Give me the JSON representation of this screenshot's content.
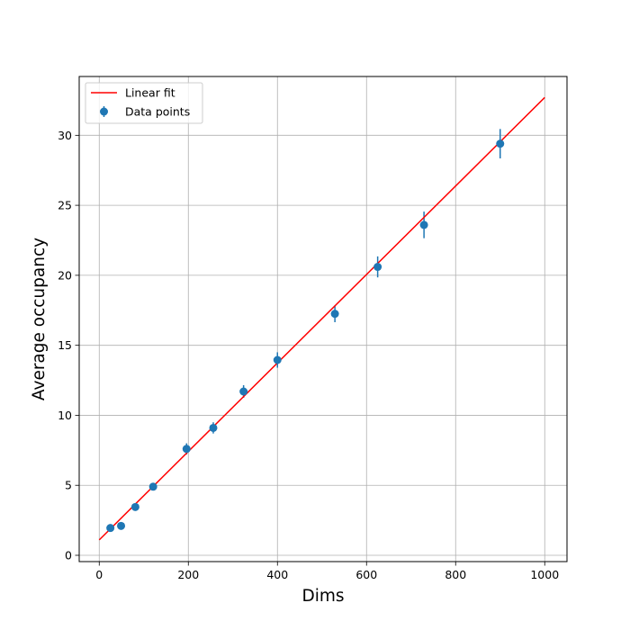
{
  "chart_data": {
    "type": "scatter",
    "title": "",
    "xlabel": "Dims",
    "ylabel": "Average occupancy",
    "xlim": [
      -45,
      1050
    ],
    "ylim": [
      -0.45,
      34.2
    ],
    "xticks": [
      0,
      200,
      400,
      600,
      800,
      1000
    ],
    "yticks": [
      0,
      5,
      10,
      15,
      20,
      25,
      30
    ],
    "grid": true,
    "legend": {
      "placement": "top-left",
      "entries": [
        "Linear fit",
        "Data points"
      ]
    },
    "series": [
      {
        "name": "Data points",
        "kind": "errorbar",
        "color": "#1f77b4",
        "points": [
          {
            "x": 25,
            "y": 1.95,
            "err": 0.25
          },
          {
            "x": 49,
            "y": 2.1,
            "err": 0.25
          },
          {
            "x": 81,
            "y": 3.45,
            "err": 0.25
          },
          {
            "x": 121,
            "y": 4.9,
            "err": 0.25
          },
          {
            "x": 196,
            "y": 7.6,
            "err": 0.4
          },
          {
            "x": 256,
            "y": 9.1,
            "err": 0.4
          },
          {
            "x": 324,
            "y": 11.7,
            "err": 0.45
          },
          {
            "x": 400,
            "y": 13.95,
            "err": 0.55
          },
          {
            "x": 529,
            "y": 17.25,
            "err": 0.6
          },
          {
            "x": 625,
            "y": 20.6,
            "err": 0.75
          },
          {
            "x": 729,
            "y": 23.6,
            "err": 0.95
          },
          {
            "x": 900,
            "y": 29.4,
            "err": 1.05
          }
        ]
      },
      {
        "name": "Linear fit",
        "kind": "line",
        "color": "#ff0000",
        "points": [
          {
            "x": 0,
            "y": 1.1
          },
          {
            "x": 1000,
            "y": 32.7
          }
        ]
      }
    ]
  }
}
